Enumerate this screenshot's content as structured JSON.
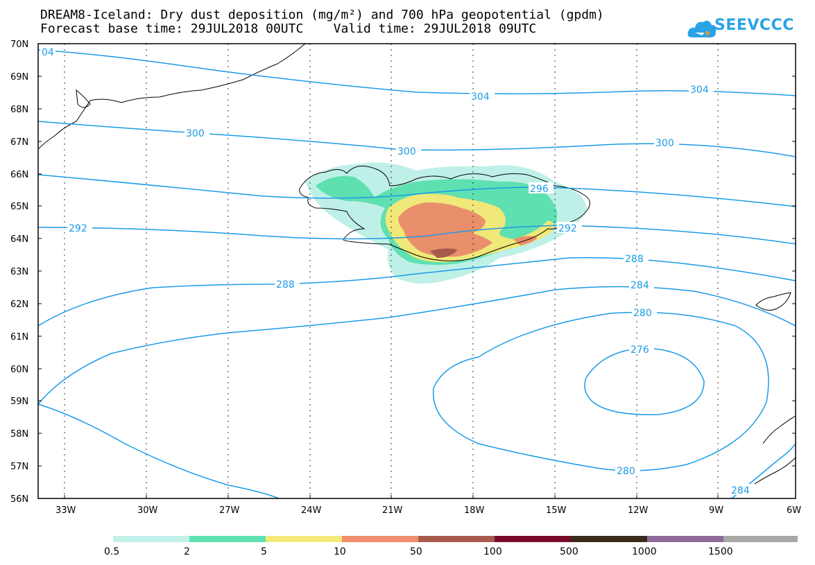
{
  "header": {
    "title_line1": "DREAM8-Iceland: Dry dust deposition (mg/m²) and 700 hPa geopotential (gpdm)",
    "title_line2": "Forecast base time: 29JUL2018 00UTC    Valid time: 29JUL2018 09UTC",
    "logo_text": "SEEVCCC"
  },
  "map": {
    "lat_labels": [
      "70N",
      "69N",
      "68N",
      "67N",
      "66N",
      "65N",
      "64N",
      "63N",
      "62N",
      "61N",
      "60N",
      "59N",
      "58N",
      "57N",
      "56N"
    ],
    "lon_labels": [
      "33W",
      "30W",
      "27W",
      "24W",
      "21W",
      "18W",
      "15W",
      "12W",
      "9W",
      "6W"
    ],
    "contour_labels": [
      {
        "text": "04"
      },
      {
        "text": "304"
      },
      {
        "text": "304"
      },
      {
        "text": "300"
      },
      {
        "text": "300"
      },
      {
        "text": "300"
      },
      {
        "text": "296"
      },
      {
        "text": "292"
      },
      {
        "text": "292"
      },
      {
        "text": "288"
      },
      {
        "text": "288"
      },
      {
        "text": "284"
      },
      {
        "text": "280"
      },
      {
        "text": "276"
      },
      {
        "text": "280"
      },
      {
        "text": "284"
      }
    ],
    "colors": {
      "contour": "#1a9be8",
      "coast": "#000000",
      "dust_0_5": "#bff0e8",
      "dust_2": "#5fe0b0",
      "dust_5": "#f0e878",
      "dust_10": "#ea8f6c",
      "dust_50": "#a85a4a"
    }
  },
  "colorbar": {
    "colors": [
      "#c2f1ea",
      "#5ee0b0",
      "#f4ea7a",
      "#ef8e6c",
      "#a95a4c",
      "#7a0a2a",
      "#3a2a1a",
      "#8c6a9a",
      "#a8a8a8",
      "#a8a8a8"
    ],
    "labels": [
      "0.5",
      "2",
      "5",
      "10",
      "50",
      "100",
      "500",
      "1000",
      "1500"
    ]
  }
}
